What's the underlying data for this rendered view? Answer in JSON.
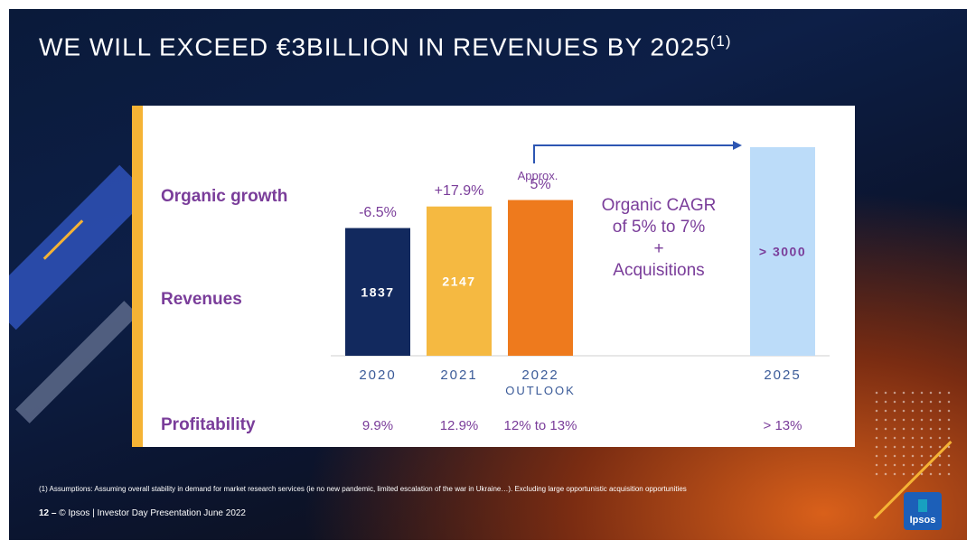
{
  "title": "WE WILL EXCEED €3BILLION IN REVENUES BY 2025",
  "title_note": "(1)",
  "labels": {
    "organic_growth": "Organic growth",
    "revenues": "Revenues",
    "profitability": "Profitability"
  },
  "approx_label": "Approx.",
  "cagr": {
    "line1": "Organic CAGR",
    "line2": "of 5% to 7%",
    "line3": "+",
    "line4": "Acquisitions"
  },
  "outlook_label": "OUTLOOK",
  "chart_data": {
    "type": "bar",
    "categories": [
      "2020",
      "2021",
      "2022",
      "2025"
    ],
    "values": [
      1837,
      2147,
      2240,
      3000
    ],
    "value_labels": [
      "1837",
      "2147",
      "",
      "> 3000"
    ],
    "organic_growth": [
      "-6.5%",
      "+17.9%",
      "5%",
      ""
    ],
    "profitability": [
      "9.9%",
      "12.9%",
      "12% to 13%",
      "> 13%"
    ],
    "colors": [
      "#12295e",
      "#f5b941",
      "#ee7a1d",
      "#bcdcf9"
    ],
    "ylim": [
      0,
      3000
    ]
  },
  "footnote": "(1) Assumptions: Assuming overall stability in demand for market research services (ie no new pandemic, limited escalation of the war in Ukraine…). Excluding large opportunistic acquisition opportunities",
  "footer": {
    "page": "12 –",
    "text": "© Ipsos | Investor Day Presentation June 2022"
  },
  "logo_text": "Ipsos"
}
